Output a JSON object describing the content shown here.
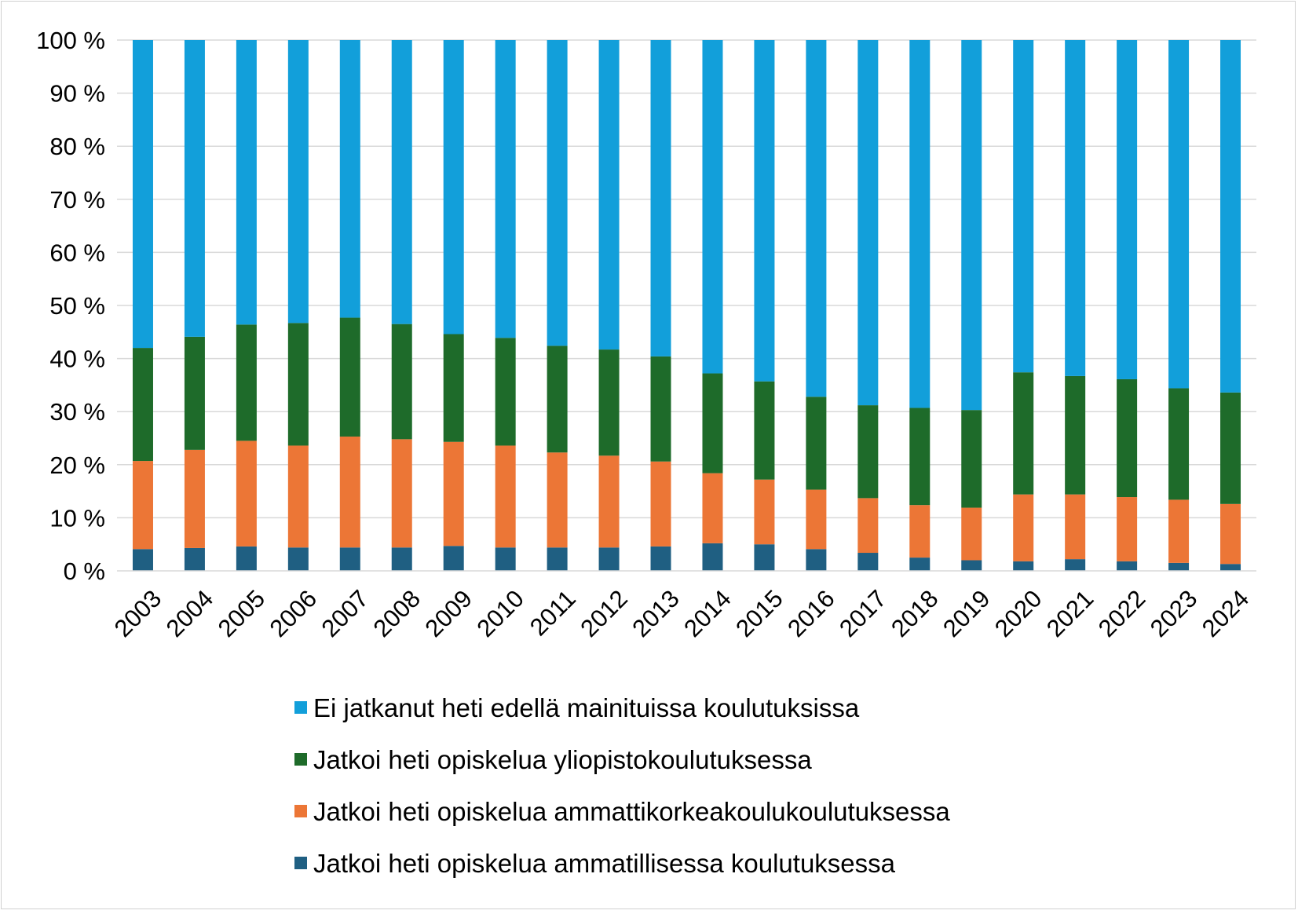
{
  "chart_data": {
    "type": "bar",
    "stacked": true,
    "categories": [
      "2003",
      "2004",
      "2005",
      "2006",
      "2007",
      "2008",
      "2009",
      "2010",
      "2011",
      "2012",
      "2013",
      "2014",
      "2015",
      "2016",
      "2017",
      "2018",
      "2019",
      "2020",
      "2021",
      "2022",
      "2023",
      "2024"
    ],
    "series": [
      {
        "name": "Jatkoi heti opiskelua ammatillisessa koulutuksessa",
        "color": "#1f5f82",
        "values": [
          4.1,
          4.3,
          4.6,
          4.4,
          4.4,
          4.4,
          4.7,
          4.4,
          4.4,
          4.4,
          4.6,
          5.2,
          5.0,
          4.1,
          3.4,
          2.5,
          2.0,
          1.8,
          2.2,
          1.8,
          1.5,
          1.3
        ]
      },
      {
        "name": "Jatkoi heti opiskelua ammattikorkeakoulukoulutuksessa",
        "color": "#ec7636",
        "values": [
          16.6,
          18.5,
          19.9,
          19.2,
          20.9,
          20.4,
          19.6,
          19.2,
          17.9,
          17.3,
          16.0,
          13.2,
          12.2,
          11.2,
          10.3,
          9.9,
          9.9,
          12.6,
          12.2,
          12.1,
          11.9,
          11.3
        ]
      },
      {
        "name": "Jatkoi heti opiskelua yliopistokoulutuksessa",
        "color": "#1e6b2a",
        "values": [
          21.3,
          21.3,
          21.9,
          23.1,
          22.4,
          21.7,
          20.3,
          20.3,
          20.1,
          20.0,
          19.8,
          18.8,
          18.5,
          17.5,
          17.5,
          18.3,
          18.4,
          23.0,
          22.3,
          22.2,
          21.0,
          21.0
        ]
      },
      {
        "name": "Ei jatkanut heti edellä mainituissa koulutuksissa",
        "color": "#129fda",
        "values": [
          58.0,
          55.9,
          53.6,
          53.3,
          52.3,
          53.5,
          55.4,
          56.1,
          57.6,
          58.3,
          59.6,
          62.8,
          64.3,
          67.2,
          68.8,
          69.3,
          69.7,
          62.6,
          63.3,
          63.9,
          65.6,
          66.4
        ]
      }
    ],
    "yticks": [
      "0 %",
      "10 %",
      "20 %",
      "30 %",
      "40 %",
      "50 %",
      "60 %",
      "70 %",
      "80 %",
      "90 %",
      "100 %"
    ],
    "ylim": [
      0,
      100
    ],
    "grid": true,
    "legend_position": "bottom",
    "legend_order": [
      3,
      2,
      1,
      0
    ]
  }
}
